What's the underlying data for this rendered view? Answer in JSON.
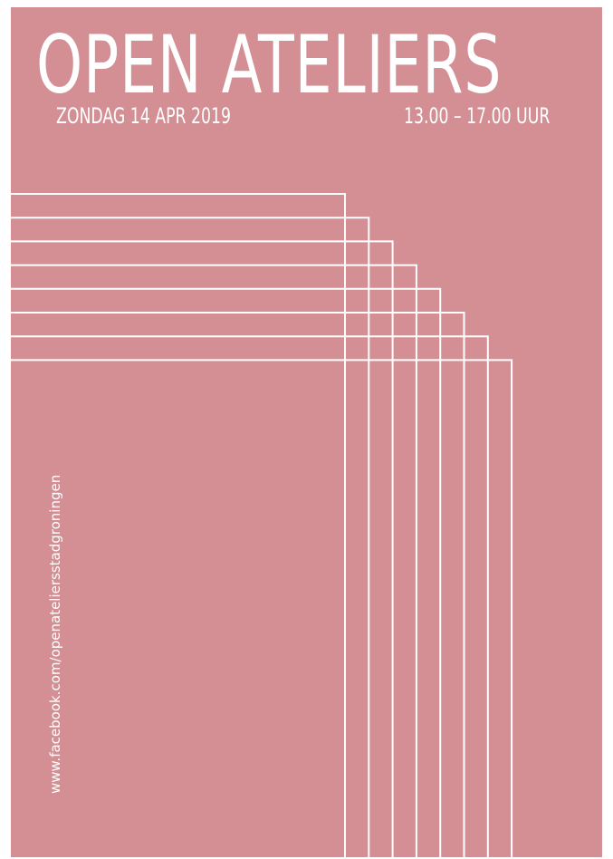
{
  "poster": {
    "title": "OPEN ATELIERS",
    "date": "ZONDAG 14 APR 2019",
    "time": "13.00 – 17.00 UUR",
    "website": "www.facebook.com/openateliersstadgroningen"
  },
  "colors": {
    "background": "#d38f94",
    "foreground": "#ffffff"
  }
}
